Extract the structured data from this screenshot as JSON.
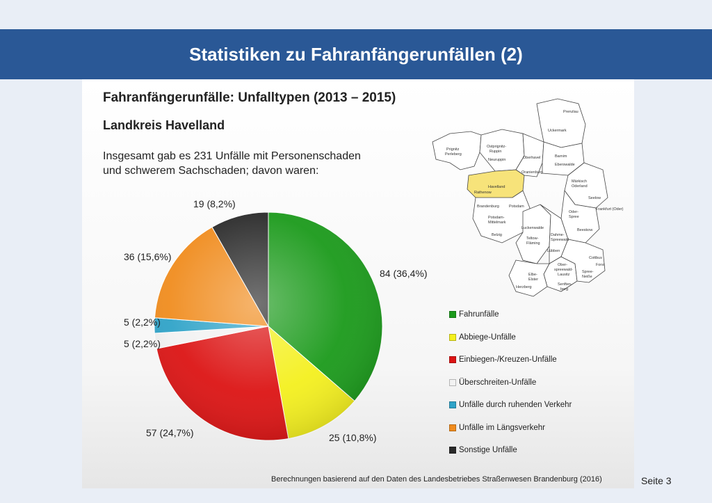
{
  "header": {
    "title": "Statistiken zu Fahranfängerunfällen (2)"
  },
  "panel": {
    "heading": "Fahranfängerunfälle: Unfalltypen (2013 – 2015)",
    "region": "Landkreis Havelland",
    "intro_line1": "Insgesamt gab es 231 Unfälle mit Personenschaden",
    "intro_line2": "und schwerem Sachschaden; davon waren:"
  },
  "chart_data": {
    "type": "pie",
    "total": 231,
    "slices": [
      {
        "name": "Fahrunfälle",
        "value": 84,
        "label": "84 (36,4%)",
        "color": "#1b9a1b"
      },
      {
        "name": "Abbiege-Unfälle",
        "value": 25,
        "label": "25 (10,8%)",
        "color": "#f4f01e"
      },
      {
        "name": "Einbiegen-/Kreuzen-Unfälle",
        "value": 57,
        "label": "57 (24,7%)",
        "color": "#dc1414"
      },
      {
        "name": "Überschreiten-Unfälle",
        "value": 5,
        "label": "5 (2,2%)",
        "color": "#f2f2f2"
      },
      {
        "name": "Unfälle durch ruhenden Verkehr",
        "value": 5,
        "label": "5 (2,2%)",
        "color": "#2fa3c8"
      },
      {
        "name": "Unfälle im Längsverkehr",
        "value": 36,
        "label": "36 (15,6%)",
        "color": "#f08c1e"
      },
      {
        "name": "Sonstige Unfälle",
        "value": 19,
        "label": "19 (8,2%)",
        "color": "#2a2a2a"
      }
    ],
    "start": "12 o'clock",
    "direction": "clockwise",
    "legend_position": "right"
  },
  "map": {
    "highlight_color": "#f7e37a",
    "labels": {
      "prignitz": "Prignitz",
      "perleberg": "Perleberg",
      "ostprignitz": "Ostprignitz-",
      "ruppin": "Ruppin",
      "neuruppin": "Neuruppin",
      "uckermark": "Uckermark",
      "prenzlau": "Prenzlau",
      "oberhavel": "Oberhavel",
      "oranienburg": "Oranienburg",
      "barnim": "Barnim",
      "eberswalde": "Eberswalde",
      "havelland": "Havelland",
      "rathenow": "Rathenow",
      "maerkisch": "Märkisch",
      "oderland": "Oderland",
      "seelow": "Seelow",
      "frankfurt": "Frankfurt (Oder)",
      "brandenburg": "Brandenburg",
      "potsdam": "Potsdam",
      "potsdam_mittelmark": "Potsdam-",
      "mittelmark": "Mittelmark",
      "belzig": "Belzig",
      "oder_spree1": "Oder-",
      "oder_spree2": "Spree",
      "beeskow": "Beeskow",
      "luckenwalde": "Luckenwalde",
      "teltow1": "Teltow-",
      "teltow2": "Fläming",
      "dahme1": "Dahme-",
      "dahme2": "Spreewald",
      "luebben": "Lübben",
      "ose1": "Ober-",
      "ose2": "spreewald-",
      "ose3": "Lausitz",
      "cottbus": "Cottbus",
      "forst": "Forst",
      "spree_neisse1": "Spree-",
      "spree_neisse2": "Neiße",
      "elbe1": "Elbe-",
      "elbe2": "Elster",
      "herzberg": "Herzberg",
      "senftenberg": "Senften-",
      "berg": "berg"
    }
  },
  "source": "Berechnungen basierend auf den Daten des Landesbetriebes Straßenwesen Brandenburg (2016)",
  "page": "Seite 3"
}
